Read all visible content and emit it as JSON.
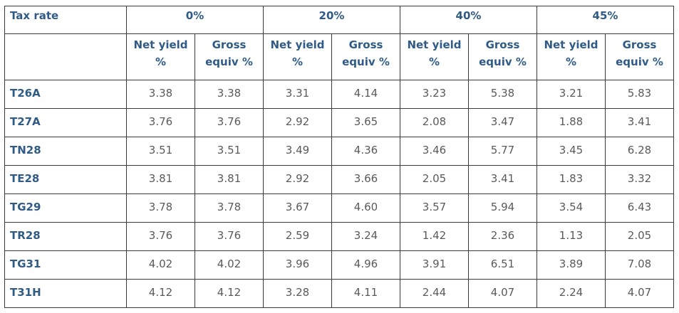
{
  "table": {
    "header": [
      "Tax rate",
      "0%",
      "20%",
      "40%",
      "45%"
    ],
    "subheader": [
      "Net yield %",
      "Gross equiv %",
      "Net yield %",
      "Gross equiv %",
      "Net yield %",
      "Gross equiv %",
      "Net yield %",
      "Gross equiv %"
    ],
    "rows": [
      {
        "label": "T26A",
        "values": [
          "3.38",
          "3.38",
          "3.31",
          "4.14",
          "3.23",
          "5.38",
          "3.21",
          "5.83"
        ]
      },
      {
        "label": "T27A",
        "values": [
          "3.76",
          "3.76",
          "2.92",
          "3.65",
          "2.08",
          "3.47",
          "1.88",
          "3.41"
        ]
      },
      {
        "label": "TN28",
        "values": [
          "3.51",
          "3.51",
          "3.49",
          "4.36",
          "3.46",
          "5.77",
          "3.45",
          "6.28"
        ]
      },
      {
        "label": "TE28",
        "values": [
          "3.81",
          "3.81",
          "2.92",
          "3.66",
          "2.05",
          "3.41",
          "1.83",
          "3.32"
        ]
      },
      {
        "label": "TG29",
        "values": [
          "3.78",
          "3.78",
          "3.67",
          "4.60",
          "3.57",
          "5.94",
          "3.54",
          "6.43"
        ]
      },
      {
        "label": "TR28",
        "values": [
          "3.76",
          "3.76",
          "2.59",
          "3.24",
          "1.42",
          "2.36",
          "1.13",
          "2.05"
        ]
      },
      {
        "label": "TG31",
        "values": [
          "4.02",
          "4.02",
          "3.96",
          "4.96",
          "3.91",
          "6.51",
          "3.89",
          "7.08"
        ]
      },
      {
        "label": "T31H",
        "values": [
          "4.12",
          "4.12",
          "3.28",
          "4.11",
          "2.44",
          "4.07",
          "2.24",
          "4.07"
        ]
      }
    ]
  }
}
